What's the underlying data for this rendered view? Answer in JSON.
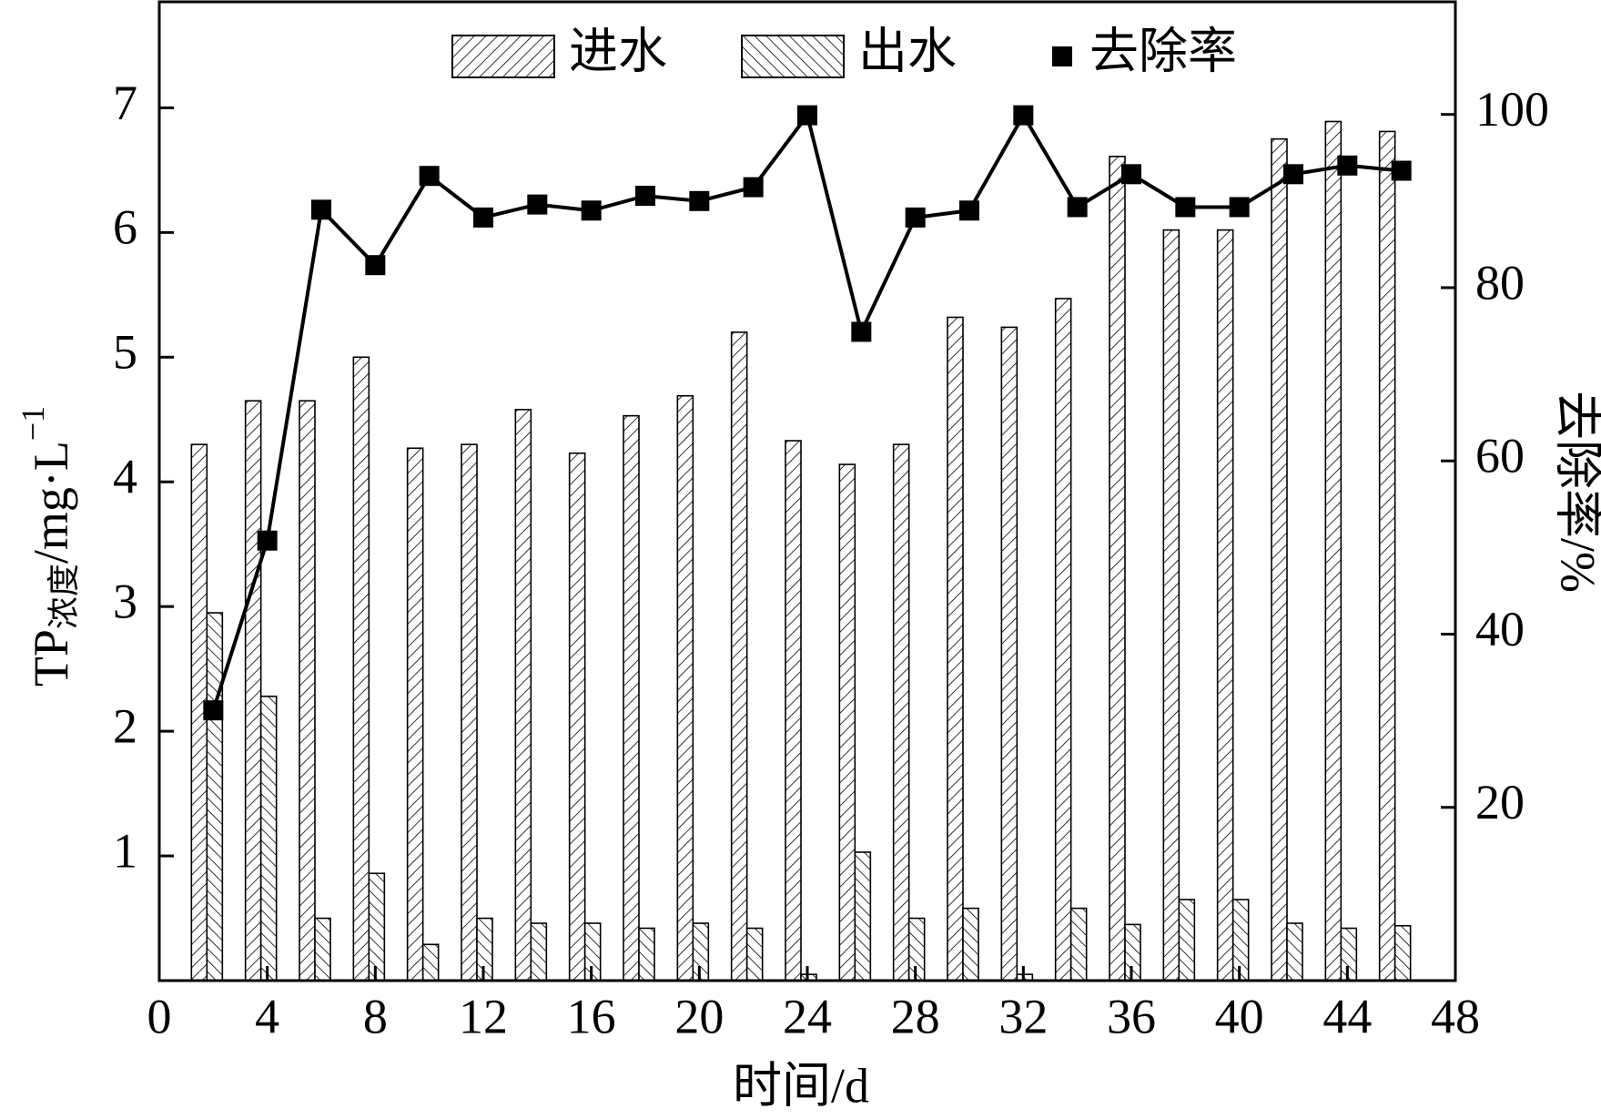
{
  "chart_data": {
    "type": "bar-line",
    "x_label": "时间/d",
    "y_label": {
      "main": "TP",
      "sub": "浓度",
      "rest": "/mg·L",
      "sup": "−1"
    },
    "y2_label": "去除率/%",
    "x": [
      2,
      4,
      6,
      8,
      10,
      12,
      14,
      16,
      18,
      20,
      22,
      24,
      26,
      28,
      30,
      32,
      34,
      36,
      38,
      40,
      42,
      44,
      46
    ],
    "series": [
      {
        "name": "进水",
        "type": "bar",
        "color": "#000",
        "hatch": "/",
        "values": [
          4.3,
          4.65,
          4.65,
          5.0,
          4.27,
          4.3,
          4.58,
          4.23,
          4.53,
          4.69,
          5.2,
          4.33,
          4.14,
          4.3,
          5.32,
          5.24,
          5.47,
          6.61,
          6.02,
          6.02,
          6.75,
          6.89,
          6.81
        ]
      },
      {
        "name": "出水",
        "type": "bar",
        "color": "#000",
        "hatch": "\\",
        "values": [
          2.95,
          2.28,
          0.5,
          0.86,
          0.29,
          0.5,
          0.46,
          0.46,
          0.42,
          0.46,
          0.42,
          0.05,
          1.03,
          0.5,
          0.58,
          0.05,
          0.58,
          0.45,
          0.65,
          0.65,
          0.46,
          0.42,
          0.44
        ]
      },
      {
        "name": "去除率",
        "type": "line",
        "axis": "y2",
        "color": "#000",
        "values": [
          31.2,
          50.8,
          89.0,
          82.6,
          92.9,
          88.1,
          89.6,
          88.9,
          90.6,
          90.0,
          91.6,
          99.9,
          74.9,
          88.1,
          88.9,
          99.9,
          89.3,
          93.1,
          89.3,
          89.3,
          93.1,
          94.1,
          93.5
        ]
      }
    ],
    "xlim": [
      0,
      48
    ],
    "xticks": [
      0,
      4,
      8,
      12,
      16,
      20,
      24,
      28,
      32,
      36,
      40,
      44,
      48
    ],
    "ylim": [
      0,
      7.85
    ],
    "yticks": [
      1,
      2,
      3,
      4,
      5,
      6,
      7
    ],
    "y2lim": [
      0,
      113
    ],
    "y2ticks": [
      20,
      40,
      60,
      80,
      100
    ],
    "legend": "top"
  }
}
